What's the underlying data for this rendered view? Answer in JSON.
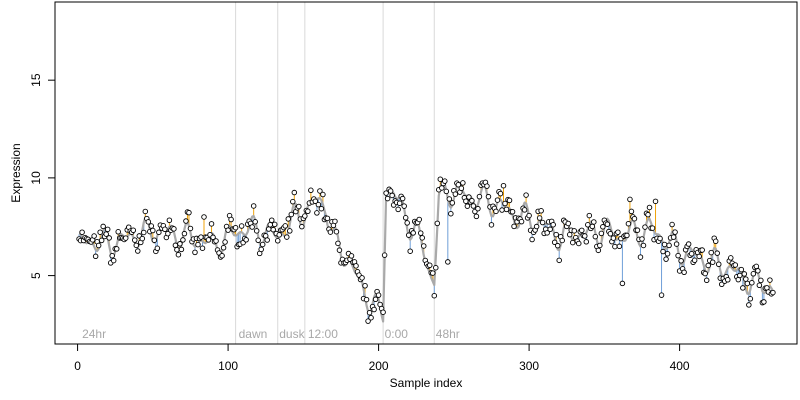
{
  "chart_data": {
    "type": "scatter",
    "title": "",
    "xlabel": "Sample index",
    "ylabel": "Expression",
    "xlim": [
      -15,
      478
    ],
    "ylim": [
      1.5,
      19
    ],
    "xticks": [
      "0",
      "100",
      "200",
      "300",
      "400"
    ],
    "xtick_values": [
      0,
      100,
      200,
      300,
      400
    ],
    "yticks": [
      "5",
      "10",
      "15"
    ],
    "ytick_values": [
      5,
      10,
      15
    ],
    "grid": false,
    "legend": "none",
    "colors": {
      "points_fill": "#ffffff",
      "points_stroke": "#000000",
      "fit_line": "#a9a9a9",
      "residual_positive": "#f0a30a",
      "residual_negative": "#6f9fd8",
      "vline": "#d9d9d9",
      "annotation": "#a8a8a8"
    },
    "vlines": [
      {
        "x": 105
      },
      {
        "x": 133
      },
      {
        "x": 151
      },
      {
        "x": 203
      },
      {
        "x": 237
      }
    ],
    "annotations": [
      {
        "x": 3,
        "text": "24hr"
      },
      {
        "x": 107,
        "text": "dawn"
      },
      {
        "x": 134,
        "text": "dusk"
      },
      {
        "x": 153,
        "text": "12:00"
      },
      {
        "x": 204,
        "text": "0:00"
      },
      {
        "x": 238,
        "text": "48hr"
      }
    ],
    "series": [
      {
        "x_range": [
          1,
          462
        ],
        "anchors": [
          [
            1,
            6.6
          ],
          [
            10,
            6.8
          ],
          [
            20,
            6.6
          ],
          [
            30,
            6.8
          ],
          [
            40,
            7.1
          ],
          [
            50,
            7.3
          ],
          [
            60,
            7.2
          ],
          [
            70,
            7.0
          ],
          [
            80,
            6.9
          ],
          [
            90,
            6.6
          ],
          [
            100,
            6.9
          ],
          [
            105,
            7.3
          ],
          [
            115,
            7.4
          ],
          [
            125,
            7.2
          ],
          [
            133,
            7.0
          ],
          [
            140,
            7.6
          ],
          [
            145,
            8.0
          ],
          [
            151,
            8.3
          ],
          [
            155,
            8.5
          ],
          [
            160,
            8.8
          ],
          [
            165,
            8.6
          ],
          [
            170,
            6.8
          ],
          [
            175,
            6.3
          ],
          [
            180,
            5.8
          ],
          [
            185,
            5.0
          ],
          [
            190,
            4.2
          ],
          [
            195,
            3.7
          ],
          [
            200,
            3.2
          ],
          [
            203,
            3.0
          ],
          [
            205,
            9.5
          ],
          [
            210,
            9.3
          ],
          [
            215,
            8.4
          ],
          [
            220,
            7.7
          ],
          [
            225,
            7.3
          ],
          [
            230,
            6.2
          ],
          [
            235,
            5.0
          ],
          [
            237,
            4.8
          ],
          [
            240,
            9.0
          ],
          [
            245,
            9.2
          ],
          [
            250,
            9.3
          ],
          [
            260,
            9.1
          ],
          [
            270,
            8.9
          ],
          [
            280,
            8.6
          ],
          [
            290,
            8.1
          ],
          [
            300,
            7.9
          ],
          [
            310,
            7.6
          ],
          [
            320,
            7.0
          ],
          [
            330,
            7.1
          ],
          [
            340,
            7.2
          ],
          [
            350,
            7.3
          ],
          [
            360,
            7.0
          ],
          [
            370,
            7.2
          ],
          [
            380,
            7.4
          ],
          [
            390,
            6.9
          ],
          [
            400,
            6.3
          ],
          [
            410,
            6.0
          ],
          [
            420,
            5.7
          ],
          [
            430,
            5.5
          ],
          [
            440,
            5.0
          ],
          [
            450,
            4.6
          ],
          [
            460,
            4.5
          ],
          [
            462,
            4.3
          ]
        ],
        "amp1": 0.45,
        "amp2": 0.35,
        "period1": 14,
        "period2": 9,
        "seed": 7,
        "notable_points": [
          {
            "x": 84,
            "y": 8.0
          },
          {
            "x": 283,
            "y": 9.6
          },
          {
            "x": 367,
            "y": 8.9
          },
          {
            "x": 384,
            "y": 8.8
          },
          {
            "x": 246,
            "y": 5.7
          },
          {
            "x": 362,
            "y": 4.6
          },
          {
            "x": 388,
            "y": 4.0
          },
          {
            "x": 446,
            "y": 3.5
          }
        ]
      }
    ]
  }
}
